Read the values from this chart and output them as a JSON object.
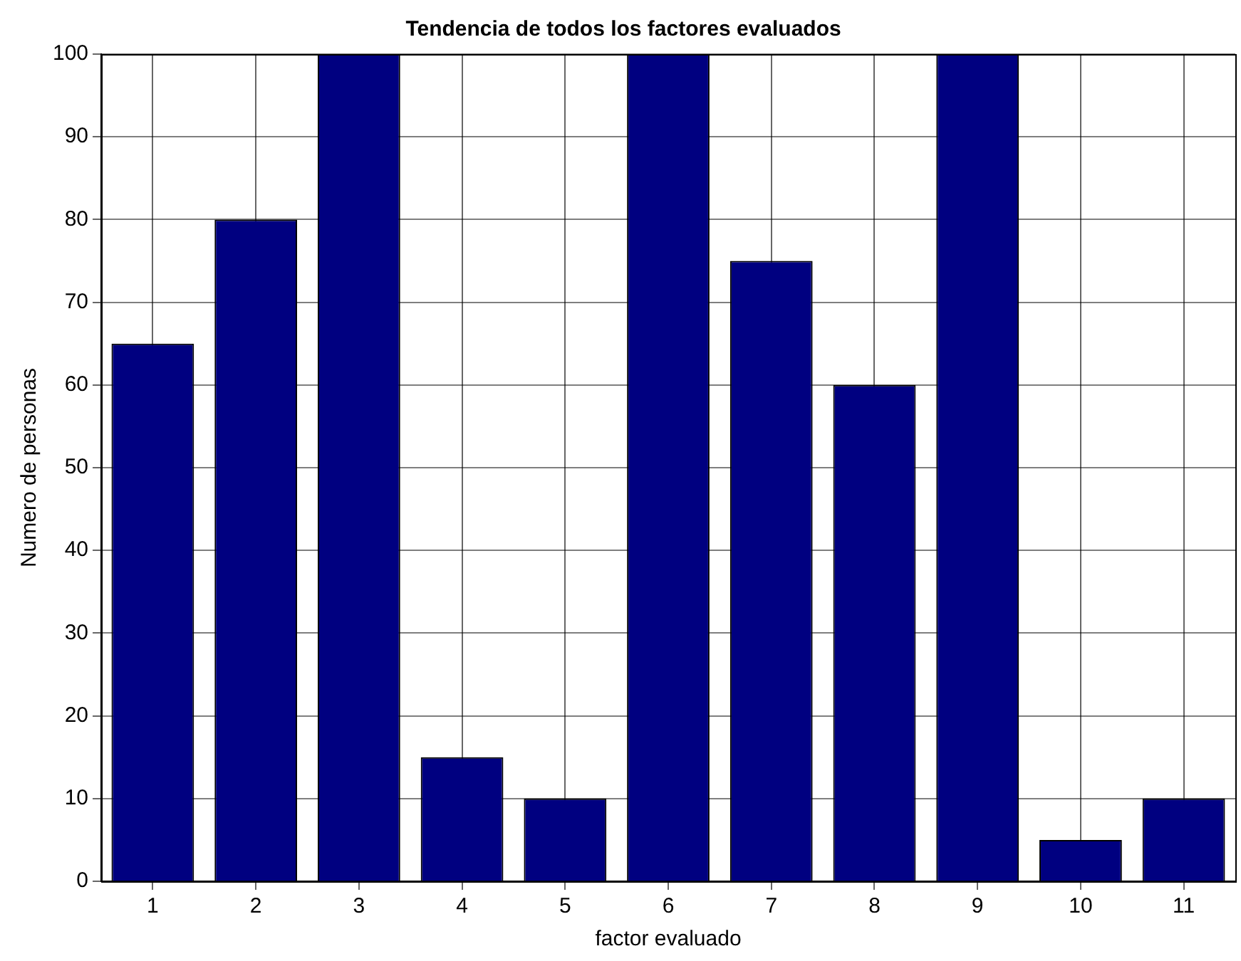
{
  "chart_data": {
    "type": "bar",
    "title": "Tendencia de todos los factores evaluados",
    "xlabel": "factor evaluado",
    "ylabel": "Numero de personas",
    "categories": [
      "1",
      "2",
      "3",
      "4",
      "5",
      "6",
      "7",
      "8",
      "9",
      "10",
      "11"
    ],
    "values": [
      65,
      80,
      100,
      15,
      10,
      100,
      75,
      60,
      100,
      5,
      10
    ],
    "color": "#000080",
    "ylim": [
      0,
      100
    ],
    "yticks": [
      0,
      10,
      20,
      30,
      40,
      50,
      60,
      70,
      80,
      90,
      100
    ],
    "grid": true,
    "legend": false
  }
}
